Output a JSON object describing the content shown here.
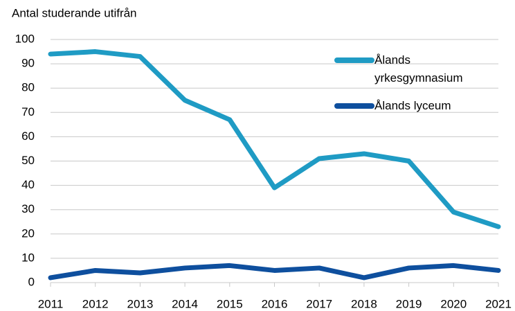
{
  "chart_data": {
    "type": "line",
    "title": "Antal studerande utifrån",
    "x": [
      2011,
      2012,
      2013,
      2014,
      2015,
      2016,
      2017,
      2018,
      2019,
      2020,
      2021
    ],
    "xlim": [
      2011,
      2021
    ],
    "xticks": [
      2011,
      2012,
      2013,
      2014,
      2015,
      2016,
      2017,
      2018,
      2019,
      2020,
      2021
    ],
    "ylim": [
      0,
      100
    ],
    "yticks": [
      0,
      10,
      20,
      30,
      40,
      50,
      60,
      70,
      80,
      90,
      100
    ],
    "grid": true,
    "legend": "upper right",
    "series": [
      {
        "name": "Ålands yrkesgymnasium",
        "color": "#1f9bc4",
        "values": [
          94,
          95,
          93,
          75,
          67,
          39,
          51,
          53,
          50,
          29,
          23
        ]
      },
      {
        "name": "Ålands lyceum",
        "color": "#0e4f9e",
        "values": [
          2,
          5,
          4,
          6,
          7,
          5,
          6,
          2,
          6,
          7,
          5
        ]
      }
    ]
  }
}
